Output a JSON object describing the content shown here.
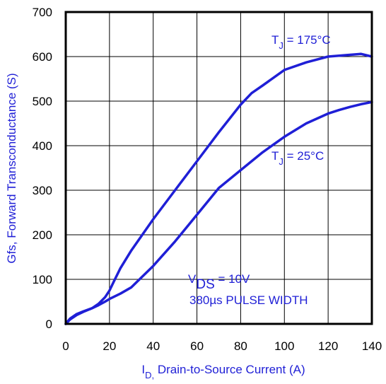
{
  "chart_data": {
    "type": "line",
    "title": "",
    "xlabel": {
      "main": "I",
      "sub": "D,",
      "rest": " Drain-to-Source Current (A)"
    },
    "ylabel": "Gfs, Forward Transconductance (S)",
    "xlim": [
      0,
      140
    ],
    "ylim": [
      0,
      700
    ],
    "xticks": [
      0,
      20,
      40,
      60,
      80,
      100,
      120,
      140
    ],
    "yticks": [
      0,
      100,
      200,
      300,
      400,
      500,
      600,
      700
    ],
    "grid": true,
    "colors": {
      "series": "#1f1fd6",
      "grid": "#000000",
      "frame": "#000000",
      "text": "#000000",
      "label": "#1f1fd6"
    },
    "series": [
      {
        "name": "TJ = 175°C",
        "x": [
          0,
          2,
          5,
          8,
          12,
          15,
          18,
          20,
          22,
          25,
          30,
          40,
          50,
          60,
          70,
          80,
          85,
          90,
          100,
          110,
          120,
          130,
          135,
          140
        ],
        "y": [
          0,
          10,
          20,
          27,
          35,
          45,
          60,
          75,
          95,
          125,
          165,
          235,
          300,
          365,
          430,
          492,
          518,
          535,
          570,
          587,
          600,
          604,
          606,
          600
        ]
      },
      {
        "name": "TJ = 25°C",
        "x": [
          0,
          2,
          5,
          8,
          12,
          15,
          18,
          20,
          25,
          30,
          40,
          50,
          60,
          70,
          80,
          90,
          100,
          110,
          120,
          125,
          130,
          135,
          140
        ],
        "y": [
          0,
          12,
          22,
          28,
          35,
          42,
          50,
          56,
          68,
          82,
          130,
          185,
          245,
          305,
          345,
          385,
          420,
          450,
          472,
          480,
          487,
          493,
          498
        ]
      }
    ],
    "annotations": [
      {
        "main": "T",
        "sub": "J",
        "rest": " = 175°C"
      },
      {
        "main": "T",
        "sub": "J",
        "rest": " = 25°C"
      },
      {
        "main": "V",
        "sub": "DS",
        "rest": " = 10V"
      },
      {
        "text": "380µs PULSE WIDTH"
      }
    ]
  }
}
